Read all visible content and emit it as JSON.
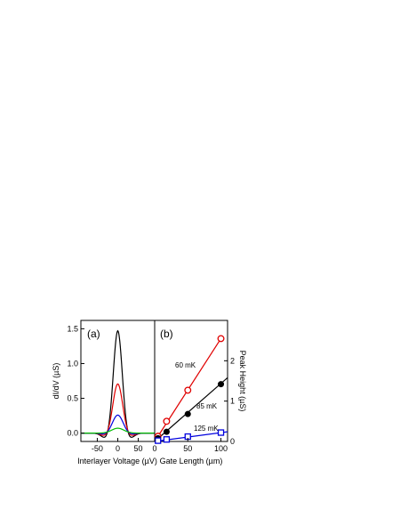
{
  "chart_data": [
    {
      "panel": "(a)",
      "type": "line",
      "xlabel": "Interlayer Voltage (µV)",
      "ylabel": "dI/dV  (µS)",
      "xlim": [
        -90,
        90
      ],
      "ylim": [
        -0.12,
        1.62
      ],
      "xticks": [
        -50,
        0,
        50
      ],
      "yticks": [
        0.0,
        0.5,
        1.0,
        1.5
      ],
      "ytick_labels": [
        "0.0",
        "0.5",
        "1.0",
        "1.5"
      ],
      "grid": false,
      "series": [
        {
          "color": "#000000",
          "peak": 1.48,
          "width": 11,
          "dip": -0.09,
          "dip_width": 26,
          "baseline": 0.0
        },
        {
          "color": "#e00000",
          "peak": 0.71,
          "width": 12,
          "dip": -0.05,
          "dip_width": 28,
          "baseline": 0.0
        },
        {
          "color": "#0000dd",
          "peak": 0.26,
          "width": 13,
          "dip": -0.02,
          "dip_width": 30,
          "baseline": 0.0
        },
        {
          "color": "#00bb00",
          "peak": 0.07,
          "width": 15,
          "dip": 0.0,
          "dip_width": 30,
          "baseline": 0.0
        }
      ]
    },
    {
      "panel": "(b)",
      "type": "scatter",
      "xlabel": "Gate Length  (µm)",
      "ylabel": "Peak Height  (µS)",
      "xlim": [
        0,
        110
      ],
      "ylim": [
        0,
        3.0
      ],
      "xticks": [
        0,
        50,
        100
      ],
      "yticks": [
        0,
        1,
        2
      ],
      "grid": false,
      "series": [
        {
          "name": "60 mK",
          "color": "#e00000",
          "marker": "open-circle",
          "x": [
            5,
            18,
            50,
            100
          ],
          "y": [
            0.13,
            0.5,
            1.27,
            2.55
          ],
          "fit": [
            [
              0,
              0
            ],
            [
              100,
              2.55
            ]
          ]
        },
        {
          "name": "85 mK",
          "color": "#000000",
          "marker": "filled-circle",
          "x": [
            5,
            18,
            50,
            100
          ],
          "y": [
            0.08,
            0.24,
            0.68,
            1.42
          ],
          "fit": [
            [
              0,
              0
            ],
            [
              110,
              1.58
            ]
          ]
        },
        {
          "name": "125 mK",
          "color": "#0000dd",
          "marker": "open-square",
          "x": [
            5,
            18,
            50,
            100
          ],
          "y": [
            0.02,
            0.05,
            0.12,
            0.22
          ],
          "fit": [
            [
              0,
              0
            ],
            [
              110,
              0.24
            ]
          ]
        }
      ]
    }
  ]
}
